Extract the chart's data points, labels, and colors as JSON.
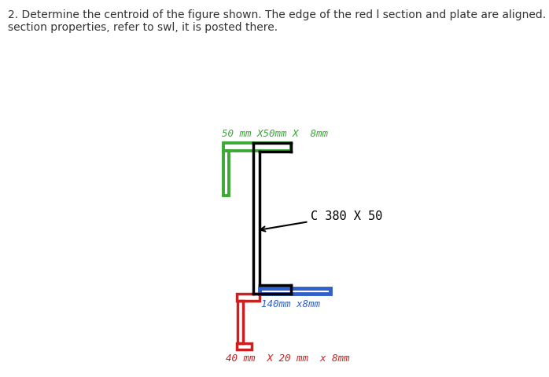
{
  "title_text": "2. Determine the centroid of the figure shown. The edge of the red l section and plate are aligned. For the\nsection properties, refer to swl, it is posted there.",
  "title_fontsize": 10.0,
  "title_color": "#333333",
  "bg_color": "#ffffff",
  "channel_color": "#000000",
  "channel_lw": 2.5,
  "green_plate_color": "#3aaa35",
  "green_plate_lw": 2.8,
  "green_label": "50 mm X50mm X  8mm",
  "green_label_color": "#3aaa35",
  "green_label_fontsize": 9,
  "blue_plate_color": "#3060c8",
  "blue_plate_lw": 3.5,
  "blue_label": "140mm x8mm",
  "blue_label_color": "#3060c8",
  "blue_label_fontsize": 9,
  "red_section_color": "#cc2020",
  "red_section_lw": 2.5,
  "red_label": "40 mm  X 20 mm  x 8mm",
  "red_label_color": "#cc2020",
  "red_label_fontsize": 9,
  "channel_label": "C 380 X 50",
  "channel_label_color": "#000000",
  "channel_label_fontsize": 11,
  "arrow_color": "#000000"
}
